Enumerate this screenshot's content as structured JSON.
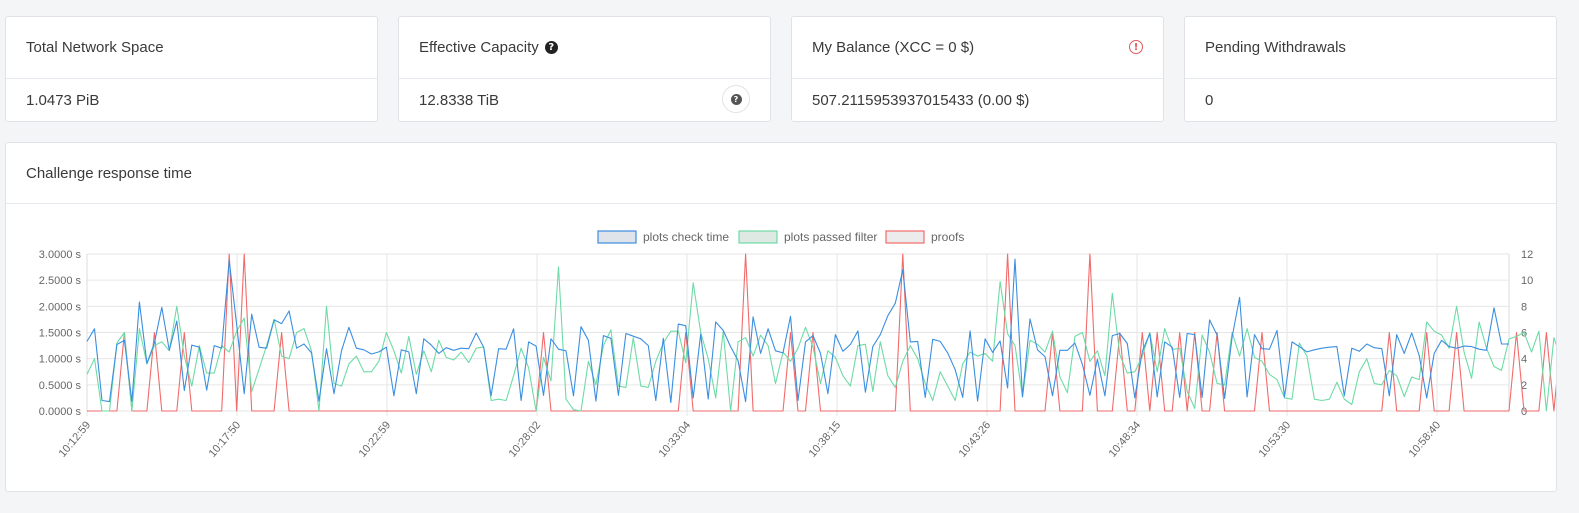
{
  "cards": [
    {
      "title": "Total Network Space",
      "value": "1.0473 PiB"
    },
    {
      "title": "Effective Capacity",
      "value": "12.8338 TiB"
    },
    {
      "title": "My Balance (XCC = 0 $)",
      "value": "507.2115953937015433 (0.00 $)"
    },
    {
      "title": "Pending Withdrawals",
      "value": "0"
    }
  ],
  "help_glyph": "?",
  "warn_glyph": "!",
  "chart_card": {
    "title": "Challenge response time"
  },
  "chart_data": {
    "type": "line",
    "legend_placement": "top-center",
    "grid": true,
    "y_left": {
      "ticks": [
        "0.0000 s",
        "0.5000 s",
        "1.0000 s",
        "1.5000 s",
        "2.0000 s",
        "2.5000 s",
        "3.0000 s"
      ],
      "range": [
        0,
        3
      ]
    },
    "y_right": {
      "ticks": [
        "0",
        "2",
        "4",
        "6",
        "8",
        "10",
        "12"
      ],
      "range": [
        0,
        12
      ]
    },
    "x_tick_labels": [
      "10:12:59",
      "10:17:50",
      "10:22:59",
      "10:28:02",
      "10:33:04",
      "10:38:15",
      "10:43:26",
      "10:48:34",
      "10:53:30",
      "10:58:40"
    ],
    "series": [
      {
        "name": "plots check time",
        "axis": "left",
        "color": "#3b8fe0",
        "fill": "#dfe3ea",
        "values": [
          1.33,
          1.57,
          0.2,
          0.18,
          1.27,
          1.35,
          0.18,
          2.08,
          0.91,
          1.3,
          1.98,
          1.16,
          1.72,
          0.39,
          1.26,
          1.22,
          0.4,
          1.25,
          1.2,
          2.88,
          1.64,
          0.33,
          1.85,
          1.22,
          1.2,
          1.74,
          1.67,
          1.91,
          1.2,
          1.28,
          1.11,
          0.19,
          1.19,
          0.33,
          1.15,
          1.6,
          1.2,
          1.17,
          1.09,
          1.13,
          1.22,
          0.29,
          1.17,
          1.13,
          0.33,
          1.38,
          1.26,
          1.1,
          1.21,
          1.16,
          1.2,
          1.19,
          1.49,
          1.22,
          0.29,
          1.19,
          1.18,
          1.57,
          0.2,
          1.32,
          1.24,
          0.3,
          1.38,
          1.18,
          1.15,
          0.29,
          1.61,
          1.35,
          0.19,
          1.44,
          1.39,
          0.3,
          1.48,
          1.43,
          1.38,
          1.25,
          0.2,
          1.39,
          0.16,
          1.66,
          1.63,
          0.25,
          1.47,
          0.23,
          1.7,
          1.54,
          1.23,
          0.96,
          0.18,
          1.8,
          1.1,
          1.57,
          1.15,
          1.11,
          1.81,
          0.2,
          1.32,
          1.44,
          1.1,
          0.33,
          1.46,
          1.14,
          1.27,
          1.53,
          0.36,
          1.23,
          1.46,
          1.82,
          2.06,
          2.7,
          1.32,
          1.33,
          0.26,
          1.37,
          1.33,
          1.11,
          0.79,
          0.26,
          1.53,
          0.19,
          1.38,
          1.12,
          1.34,
          0.44,
          2.9,
          0.27,
          1.76,
          1.17,
          1.04,
          0.29,
          1.16,
          1.16,
          1.3,
          0.89,
          0.3,
          0.99,
          0.29,
          1.44,
          1.48,
          1.29,
          0.25,
          1.14,
          1.48,
          0.27,
          1.32,
          1.22,
          0.26,
          1.48,
          1.46,
          0.26,
          1.74,
          1.45,
          0.24,
          1.41,
          2.17,
          0.27,
          1.46,
          1.19,
          1.18,
          1.54,
          0.27,
          1.32,
          1.23,
          1.13,
          1.17,
          1.2,
          1.22,
          1.23,
          0.29,
          1.2,
          1.14,
          1.28,
          1.21,
          1.19,
          0.29,
          1.46,
          1.1,
          1.49,
          1.06,
          0.25,
          1.1,
          1.35,
          1.23,
          1.2,
          1.24,
          1.23,
          1.18,
          1.16,
          1.97,
          1.28,
          1.28
        ]
      },
      {
        "name": "plots passed filter",
        "axis": "right",
        "color": "#6edba6",
        "fill": "#dfe9e3",
        "values": [
          2.8,
          4.0,
          0,
          0,
          5.2,
          6.0,
          0,
          6.3,
          3.6,
          5.0,
          5.3,
          4.6,
          8.0,
          4.2,
          1.9,
          5.0,
          2.9,
          2.9,
          5.0,
          4.5,
          6.1,
          7.1,
          1.5,
          3.2,
          5.0,
          7.0,
          4.2,
          4.0,
          6.0,
          6.3,
          4.6,
          0,
          8.0,
          2.1,
          1.9,
          3.6,
          4.2,
          3.0,
          3.0,
          3.8,
          6.0,
          4.6,
          2.9,
          5.7,
          2.8,
          4.6,
          3.0,
          5.4,
          4.1,
          3.9,
          4.5,
          3.7,
          4.8,
          4.9,
          0.8,
          0.9,
          0.8,
          2.7,
          4.8,
          3.3,
          0,
          4.1,
          2.3,
          11.0,
          0.9,
          0.1,
          0,
          3.8,
          2.0,
          5.0,
          6.2,
          1.9,
          1.8,
          5.6,
          1.9,
          1.8,
          3.8,
          5.2,
          6.1,
          6.1,
          3.7,
          9.8,
          6.0,
          4.0,
          1.0,
          6.1,
          0,
          5.3,
          5.6,
          4.2,
          5.8,
          5.0,
          2.1,
          4.5,
          3.8,
          4.8,
          6.4,
          4.9,
          2.1,
          4.6,
          4.1,
          2.7,
          1.9,
          5.0,
          5.1,
          1.5,
          5.3,
          2.7,
          1.8,
          3.8,
          5.0,
          4.0,
          2.1,
          0.8,
          3.0,
          1.9,
          0.8,
          3.6,
          4.5,
          4.2,
          4.4,
          3.8,
          9.9,
          5.9,
          5.0,
          1.1,
          5.4,
          5.1,
          4.5,
          6.1,
          2.6,
          1.4,
          5.7,
          6.0,
          3.8,
          4.6,
          2.7,
          9.0,
          4.3,
          2.9,
          3.0,
          4.2,
          6.0,
          3.0,
          6.3,
          4.7,
          4.8,
          1.5,
          0.2,
          5.8,
          4.5,
          2.1,
          2.0,
          6.0,
          4.2,
          6.3,
          4.1,
          3.8,
          2.8,
          2.4,
          1.0,
          0.9,
          5.2,
          4.2,
          0.9,
          0.8,
          0.9,
          2.2,
          0.9,
          0.5,
          3.0,
          4.0,
          2.1,
          2.0,
          3.1,
          2.7,
          1.1,
          2.6,
          2.4,
          6.8,
          6.1,
          5.8,
          4.8,
          8.0,
          4.5,
          2.5,
          6.8,
          4.8,
          3.4,
          3.1,
          5.5,
          5.7,
          6.0,
          4.5,
          6.1,
          0,
          5.6,
          3.9,
          6.8
        ]
      },
      {
        "name": "proofs",
        "axis": "right",
        "color": "#f26a6a",
        "fill": "#ececec",
        "values": [
          0,
          0,
          0,
          0,
          0,
          6,
          0,
          0,
          0,
          6,
          0,
          0,
          0,
          6,
          0,
          0,
          0,
          0,
          0,
          12,
          0,
          12,
          0,
          0,
          0,
          0,
          6,
          0,
          0,
          0,
          0,
          0,
          0,
          0,
          0,
          0,
          0,
          0,
          0,
          0,
          0,
          0,
          0,
          0,
          0,
          0,
          0,
          0,
          0,
          0,
          0,
          0,
          0,
          0,
          0,
          0,
          0,
          0,
          0,
          0,
          0,
          6,
          0,
          0,
          0,
          0,
          0,
          0,
          0,
          0,
          0,
          0,
          0,
          0,
          0,
          0,
          0,
          0,
          0,
          0,
          6,
          0,
          0,
          0,
          0,
          0,
          0,
          0,
          12,
          0,
          0,
          0,
          0,
          0,
          6,
          0,
          0,
          6,
          0,
          0,
          0,
          0,
          0,
          0,
          0,
          0,
          0,
          0,
          0,
          12,
          0,
          0,
          0,
          0,
          0,
          0,
          0,
          0,
          0,
          0,
          0,
          0,
          0,
          12,
          0,
          0,
          0,
          0,
          0,
          6,
          0,
          0,
          0,
          0,
          12,
          0,
          0,
          0,
          6,
          0,
          0,
          6,
          0,
          6,
          0,
          0,
          6,
          0,
          6,
          0,
          0,
          6,
          0,
          0,
          0,
          0,
          0,
          6,
          0,
          0,
          0,
          0,
          0,
          0,
          0,
          0,
          0,
          0,
          0,
          0,
          0,
          0,
          0,
          0,
          6,
          0,
          0,
          0,
          0,
          6,
          0,
          0,
          0,
          6,
          0,
          0,
          0,
          0,
          0,
          0,
          0,
          6,
          0,
          0,
          0,
          6,
          0,
          6,
          0
        ]
      }
    ]
  }
}
